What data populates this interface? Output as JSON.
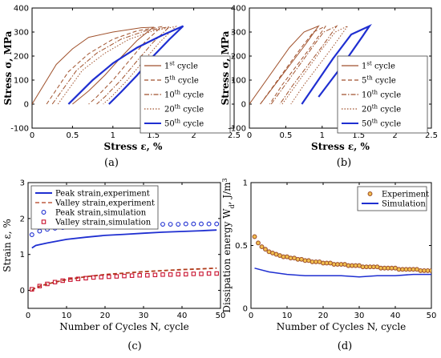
{
  "chart_data": [
    {
      "panel": "(a)",
      "type": "line",
      "xlabel": "Stress ε, %",
      "ylabel": "Stress σ, MPa",
      "xlim": [
        0,
        2.5
      ],
      "ylim": [
        -100,
        400
      ],
      "xticks": [
        "0",
        "0.5",
        "1",
        "1.5",
        "2",
        "2.5"
      ],
      "yticks": [
        "-100",
        "0",
        "100",
        "200",
        "300",
        "400"
      ],
      "legend_position": "right",
      "series": [
        {
          "name": "1st cycle",
          "color": "#a0522d",
          "style": "solid",
          "load": [
            [
              0,
              0
            ],
            [
              0.3,
              165
            ],
            [
              0.5,
              230
            ],
            [
              0.7,
              278
            ],
            [
              1.0,
              300
            ],
            [
              1.35,
              318
            ],
            [
              1.5,
              320
            ]
          ],
          "unload": [
            [
              1.5,
              320
            ],
            [
              1.3,
              265
            ],
            [
              1.1,
              195
            ],
            [
              0.9,
              120
            ],
            [
              0.7,
              55
            ],
            [
              0.5,
              0
            ]
          ]
        },
        {
          "name": "5th cycle",
          "color": "#a0522d",
          "style": "dash",
          "load": [
            [
              0.18,
              0
            ],
            [
              0.45,
              135
            ],
            [
              0.7,
              210
            ],
            [
              1.0,
              270
            ],
            [
              1.3,
              305
            ],
            [
              1.6,
              322
            ]
          ],
          "unload": [
            [
              1.6,
              322
            ],
            [
              1.4,
              260
            ],
            [
              1.2,
              180
            ],
            [
              1.0,
              100
            ],
            [
              0.8,
              30
            ],
            [
              0.7,
              0
            ]
          ]
        },
        {
          "name": "10th cycle",
          "color": "#a0522d",
          "style": "dashdot",
          "load": [
            [
              0.25,
              0
            ],
            [
              0.55,
              140
            ],
            [
              0.8,
              212
            ],
            [
              1.1,
              270
            ],
            [
              1.4,
              305
            ],
            [
              1.7,
              322
            ]
          ],
          "unload": [
            [
              1.7,
              322
            ],
            [
              1.5,
              258
            ],
            [
              1.3,
              180
            ],
            [
              1.1,
              100
            ],
            [
              0.9,
              30
            ],
            [
              0.8,
              0
            ]
          ]
        },
        {
          "name": "20th cycle",
          "color": "#a0522d",
          "style": "dot",
          "load": [
            [
              0.32,
              0
            ],
            [
              0.62,
              140
            ],
            [
              0.9,
              212
            ],
            [
              1.2,
              270
            ],
            [
              1.5,
              305
            ],
            [
              1.78,
              323
            ]
          ],
          "unload": [
            [
              1.78,
              323
            ],
            [
              1.58,
              258
            ],
            [
              1.38,
              180
            ],
            [
              1.18,
              100
            ],
            [
              0.98,
              30
            ],
            [
              0.88,
              0
            ]
          ]
        },
        {
          "name": "50th cycle",
          "color": "#1f2fd1",
          "style": "solid",
          "load": [
            [
              0.45,
              0
            ],
            [
              0.75,
              100
            ],
            [
              1.0,
              170
            ],
            [
              1.3,
              235
            ],
            [
              1.6,
              285
            ],
            [
              1.87,
              325
            ]
          ],
          "unload": [
            [
              1.87,
              325
            ],
            [
              1.7,
              270
            ],
            [
              1.5,
              200
            ],
            [
              1.3,
              120
            ],
            [
              1.1,
              50
            ],
            [
              0.95,
              0
            ]
          ]
        }
      ]
    },
    {
      "panel": "(b)",
      "type": "line",
      "xlabel": "Stress ε, %",
      "ylabel": "Stress σ, MPa",
      "xlim": [
        0,
        2.5
      ],
      "ylim": [
        -100,
        400
      ],
      "xticks": [
        "0",
        "0.5",
        "1",
        "1.5",
        "2",
        "2.5"
      ],
      "yticks": [
        "-100",
        "0",
        "100",
        "200",
        "300",
        "400"
      ],
      "legend_position": "right",
      "series": [
        {
          "name": "1st cycle",
          "color": "#a0522d",
          "style": "solid",
          "load": [
            [
              0,
              0
            ],
            [
              0.55,
              235
            ],
            [
              0.75,
              300
            ],
            [
              0.95,
              325
            ]
          ],
          "unload": [
            [
              0.95,
              325
            ],
            [
              0.75,
              240
            ],
            [
              0.55,
              160
            ],
            [
              0.35,
              80
            ],
            [
              0.15,
              0
            ]
          ]
        },
        {
          "name": "5th cycle",
          "color": "#a0522d",
          "style": "dash",
          "load": [
            [
              0.15,
              0
            ],
            [
              0.7,
              230
            ],
            [
              0.88,
              300
            ],
            [
              1.05,
              325
            ]
          ],
          "unload": [
            [
              1.05,
              325
            ],
            [
              0.85,
              240
            ],
            [
              0.65,
              160
            ],
            [
              0.45,
              80
            ],
            [
              0.28,
              0
            ]
          ]
        },
        {
          "name": "10th cycle",
          "color": "#a0522d",
          "style": "dashdot",
          "load": [
            [
              0.3,
              0
            ],
            [
              0.85,
              230
            ],
            [
              1.02,
              300
            ],
            [
              1.2,
              325
            ]
          ],
          "unload": [
            [
              1.2,
              325
            ],
            [
              1.0,
              240
            ],
            [
              0.8,
              160
            ],
            [
              0.6,
              80
            ],
            [
              0.42,
              0
            ]
          ]
        },
        {
          "name": "20th cycle",
          "color": "#a0522d",
          "style": "dot",
          "load": [
            [
              0.45,
              0
            ],
            [
              1.0,
              230
            ],
            [
              1.18,
              300
            ],
            [
              1.35,
              325
            ]
          ],
          "unload": [
            [
              1.35,
              325
            ],
            [
              1.15,
              240
            ],
            [
              0.95,
              160
            ],
            [
              0.75,
              80
            ],
            [
              0.57,
              0
            ]
          ]
        },
        {
          "name": "50th cycle",
          "color": "#1f2fd1",
          "style": "solid",
          "load": [
            [
              0.72,
              0
            ],
            [
              1.15,
              190
            ],
            [
              1.4,
              290
            ],
            [
              1.65,
              325
            ]
          ],
          "unload": [
            [
              1.65,
              325
            ],
            [
              1.55,
              280
            ],
            [
              1.4,
              215
            ],
            [
              1.25,
              150
            ],
            [
              1.1,
              90
            ],
            [
              0.95,
              30
            ]
          ]
        }
      ]
    },
    {
      "panel": "(c)",
      "type": "line",
      "xlabel": "Number of Cycles  N, cycle",
      "ylabel": "Strain  ε, %",
      "xlim": [
        0,
        50
      ],
      "ylim": [
        -0.5,
        3
      ],
      "xticks": [
        "0",
        "10",
        "20",
        "30",
        "40",
        "50"
      ],
      "yticks": [
        "0",
        "1",
        "2",
        "3"
      ],
      "legend_position": "top-left",
      "series": [
        {
          "name": "Peak strain,experiment",
          "color": "#1f2fd1",
          "style": "solid",
          "x": [
            1,
            2,
            5,
            10,
            15,
            20,
            25,
            30,
            35,
            40,
            45,
            49
          ],
          "values": [
            1.18,
            1.25,
            1.32,
            1.42,
            1.48,
            1.53,
            1.56,
            1.59,
            1.62,
            1.64,
            1.66,
            1.68
          ]
        },
        {
          "name": "Valley strain,experiment",
          "color": "#b03a1a",
          "style": "dash",
          "x": [
            1,
            2,
            5,
            10,
            15,
            20,
            25,
            30,
            35,
            40,
            45,
            49
          ],
          "values": [
            0.0,
            0.08,
            0.18,
            0.3,
            0.38,
            0.44,
            0.48,
            0.52,
            0.55,
            0.58,
            0.6,
            0.62
          ]
        },
        {
          "name": "Peak strain,simulation",
          "color": "#1f2fd1",
          "style": "marker-circle",
          "x": [
            1,
            3,
            5,
            7,
            9,
            11,
            13,
            15,
            17,
            19,
            21,
            23,
            25,
            27,
            29,
            31,
            33,
            35,
            37,
            39,
            41,
            43,
            45,
            47,
            49
          ],
          "values": [
            1.55,
            1.65,
            1.7,
            1.73,
            1.75,
            1.77,
            1.78,
            1.79,
            1.8,
            1.8,
            1.81,
            1.82,
            1.82,
            1.83,
            1.83,
            1.83,
            1.84,
            1.84,
            1.84,
            1.84,
            1.85,
            1.85,
            1.85,
            1.85,
            1.85
          ]
        },
        {
          "name": "Valley strain,simulation",
          "color": "#c8102e",
          "style": "marker-square",
          "x": [
            1,
            3,
            5,
            7,
            9,
            11,
            13,
            15,
            17,
            19,
            21,
            23,
            25,
            27,
            29,
            31,
            33,
            35,
            37,
            39,
            41,
            43,
            45,
            47,
            49
          ],
          "values": [
            0.03,
            0.12,
            0.18,
            0.23,
            0.27,
            0.3,
            0.32,
            0.34,
            0.36,
            0.37,
            0.38,
            0.39,
            0.4,
            0.41,
            0.42,
            0.42,
            0.43,
            0.44,
            0.44,
            0.45,
            0.45,
            0.46,
            0.46,
            0.47,
            0.47
          ]
        }
      ]
    },
    {
      "panel": "(d)",
      "type": "line",
      "xlabel": "Number of Cycles  N, cycle",
      "ylabel": "Dissipation energy  W",
      "ylabel_sub": "d",
      "ylabel_unit": ", J/m",
      "ylabel_sup": "3",
      "xlim": [
        0,
        50
      ],
      "ylim": [
        0,
        1
      ],
      "xticks": [
        "0",
        "10",
        "20",
        "30",
        "40",
        "50"
      ],
      "yticks": [
        "0",
        "0.5",
        "1"
      ],
      "legend_position": "top-right",
      "series": [
        {
          "name": "Experiment",
          "color": "#a0522d",
          "style": "marker-circle",
          "x": [
            1,
            2,
            3,
            4,
            5,
            6,
            7,
            8,
            9,
            10,
            11,
            12,
            13,
            14,
            15,
            16,
            17,
            18,
            19,
            20,
            21,
            22,
            23,
            24,
            25,
            26,
            27,
            28,
            29,
            30,
            31,
            32,
            33,
            34,
            35,
            36,
            37,
            38,
            39,
            40,
            41,
            42,
            43,
            44,
            45,
            46,
            47,
            48,
            49,
            50
          ],
          "values": [
            0.57,
            0.52,
            0.49,
            0.47,
            0.45,
            0.44,
            0.43,
            0.42,
            0.41,
            0.41,
            0.4,
            0.4,
            0.39,
            0.39,
            0.38,
            0.38,
            0.37,
            0.37,
            0.37,
            0.36,
            0.36,
            0.36,
            0.35,
            0.35,
            0.35,
            0.35,
            0.34,
            0.34,
            0.34,
            0.34,
            0.33,
            0.33,
            0.33,
            0.33,
            0.33,
            0.32,
            0.32,
            0.32,
            0.32,
            0.32,
            0.31,
            0.31,
            0.31,
            0.31,
            0.31,
            0.31,
            0.3,
            0.3,
            0.3,
            0.3
          ]
        },
        {
          "name": "Simulation",
          "color": "#1f2fd1",
          "style": "solid",
          "x": [
            1,
            5,
            10,
            15,
            20,
            25,
            30,
            35,
            40,
            45,
            50
          ],
          "values": [
            0.32,
            0.29,
            0.27,
            0.26,
            0.26,
            0.26,
            0.25,
            0.26,
            0.26,
            0.27,
            0.27
          ]
        }
      ]
    }
  ]
}
